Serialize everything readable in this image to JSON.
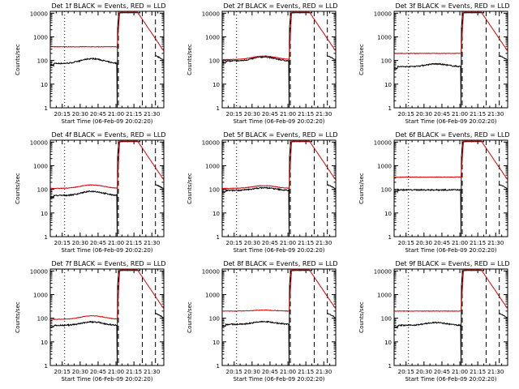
{
  "chart_data": {
    "type": "line",
    "x_tick_labels": [
      "20:15",
      "20:30",
      "20:45",
      "21:00",
      "21:15",
      "21:30"
    ],
    "x_ticks_minutes_after_20:00": [
      15,
      30,
      45,
      60,
      75,
      90
    ],
    "xlim_minutes_after_20:00": [
      5,
      100
    ],
    "ylabel": "Counts/sec",
    "xlabel": "Start Time (06-Feb-09 20:02:20)",
    "yscale": "log",
    "ylim": [
      1,
      12000
    ],
    "y_tick_labels": [
      "1",
      "10",
      "100",
      "1000",
      "10000"
    ],
    "vertical_lines": [
      {
        "x_minutes": 17,
        "style": "dotted"
      },
      {
        "x_minutes": 62,
        "style": "dashed"
      },
      {
        "x_minutes": 82,
        "style": "dashed"
      },
      {
        "x_minutes": 93,
        "style": "dashed"
      }
    ],
    "series_colors": {
      "Events": "#000000",
      "LLD": "#dd0000"
    },
    "panels": [
      {
        "title": "Det 1f BLACK = Events, RED = LLD",
        "events_base": 75,
        "lld_base": 380,
        "events_bump": 1.6,
        "lld_bump": 1.0
      },
      {
        "title": "Det 2f BLACK = Events, RED = LLD",
        "events_base": 95,
        "lld_base": 110,
        "events_bump": 1.5,
        "lld_bump": 1.4
      },
      {
        "title": "Det 3f BLACK = Events, RED = LLD",
        "events_base": 55,
        "lld_base": 200,
        "events_bump": 1.3,
        "lld_bump": 1.0
      },
      {
        "title": "Det 4f BLACK = Events, RED = LLD",
        "events_base": 55,
        "lld_base": 110,
        "events_bump": 1.5,
        "lld_bump": 1.4
      },
      {
        "title": "Det 5f BLACK = Events, RED = LLD",
        "events_base": 90,
        "lld_base": 110,
        "events_bump": 1.3,
        "lld_bump": 1.3
      },
      {
        "title": "Det 6f BLACK = Events, RED = LLD",
        "events_base": 95,
        "lld_base": 330,
        "events_bump": 1.0,
        "lld_bump": 1.0
      },
      {
        "title": "Det 7f BLACK = Events, RED = LLD",
        "events_base": 50,
        "lld_base": 90,
        "events_bump": 1.4,
        "lld_bump": 1.4
      },
      {
        "title": "Det 8f BLACK = Events, RED = LLD",
        "events_base": 55,
        "lld_base": 200,
        "events_bump": 1.3,
        "lld_bump": 1.1
      },
      {
        "title": "Det 9f BLACK = Events, RED = LLD",
        "events_base": 50,
        "lld_base": 200,
        "events_bump": 1.3,
        "lld_bump": 1.0
      }
    ],
    "flare_peak": 10000,
    "flare_start_minutes": 61,
    "lld_tail_end": 250,
    "events_tail_end": 90
  }
}
